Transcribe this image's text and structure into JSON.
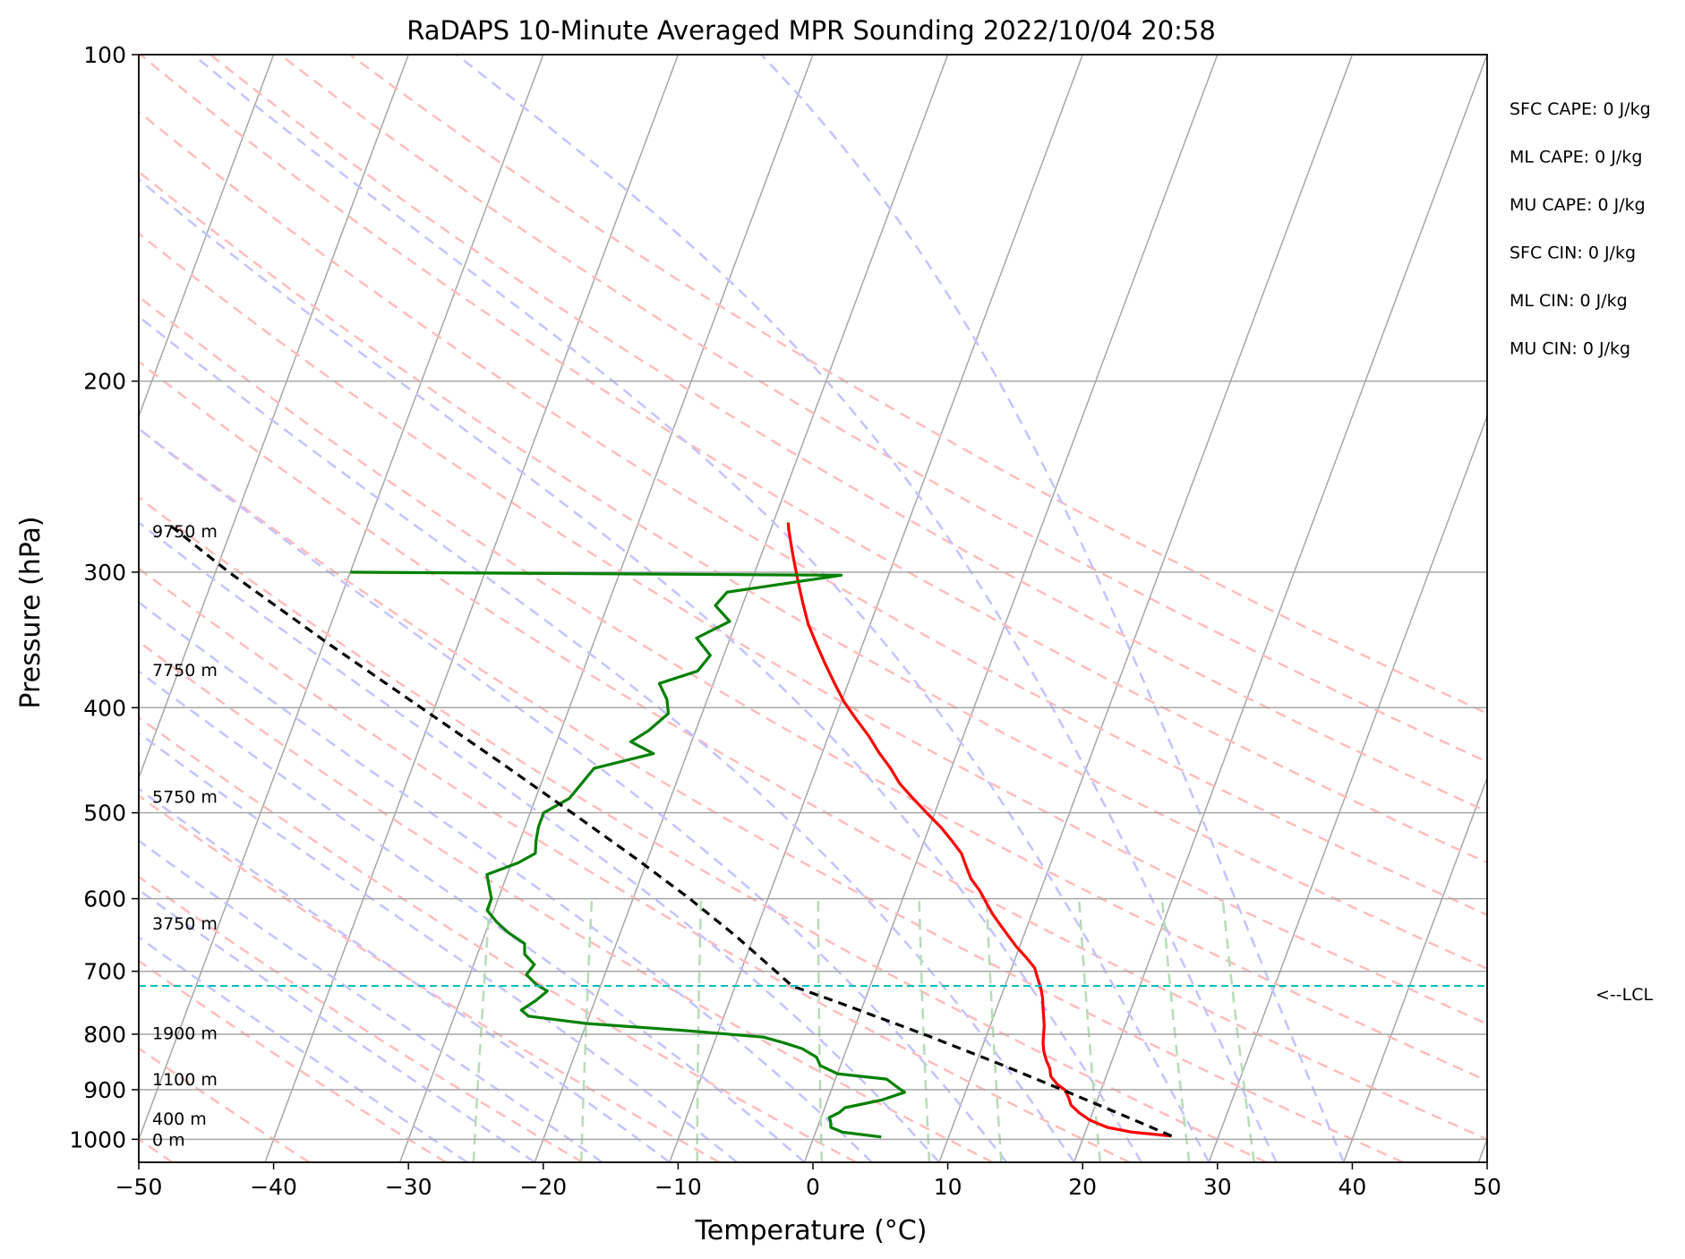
{
  "chart_data": {
    "type": "line",
    "title": "RaDAPS 10-Minute Averaged MPR Sounding 2022/10/04 20:58",
    "xlabel": "Temperature (°C)",
    "ylabel": "Pressure (hPa)",
    "xlim": [
      -50,
      50
    ],
    "ylim": [
      1050,
      100
    ],
    "y_scale": "log",
    "x_ticks": [
      -50,
      -40,
      -30,
      -20,
      -10,
      0,
      10,
      20,
      30,
      40,
      50
    ],
    "x_tick_labels": [
      "−50",
      "−40",
      "−30",
      "−20",
      "−10",
      "0",
      "10",
      "20",
      "30",
      "40",
      "50"
    ],
    "y_ticks": [
      100,
      200,
      300,
      400,
      500,
      600,
      700,
      800,
      900,
      1000
    ],
    "y_tick_labels": [
      "100",
      "200",
      "300",
      "400",
      "500",
      "600",
      "700",
      "800",
      "900",
      "1000"
    ],
    "colors": {
      "temperature": "#ff0000",
      "dewpoint": "#008000",
      "parcel": "#000000",
      "isotherm": "#a6a6a6",
      "dry_adiabat": "#ffbcbc",
      "moist_adiabat": "#c3c3ff",
      "mixing_ratio": "#b7dbb7",
      "lcl_line": "#00bfbf"
    },
    "series": [
      {
        "key": "temperature",
        "pressure": [
          993,
          985,
          975,
          960,
          945,
          930,
          915,
          900,
          890,
          875,
          860,
          845,
          830,
          815,
          800,
          785,
          770,
          755,
          740,
          725,
          710,
          695,
          680,
          665,
          650,
          635,
          620,
          605,
          590,
          575,
          560,
          545,
          530,
          515,
          500,
          485,
          470,
          455,
          440,
          425,
          410,
          395,
          380,
          365,
          350,
          335,
          320,
          305,
          290,
          275,
          270
        ],
        "temperature": [
          26.5,
          23.5,
          21.5,
          20.0,
          19.0,
          18.2,
          17.8,
          17.3,
          16.6,
          15.9,
          15.6,
          15.1,
          14.7,
          14.4,
          14.2,
          14.0,
          13.7,
          13.4,
          13.1,
          12.7,
          12.2,
          11.7,
          10.8,
          9.8,
          8.9,
          8.0,
          7.1,
          6.3,
          5.5,
          4.5,
          3.8,
          3.1,
          2.0,
          0.8,
          -0.6,
          -2.0,
          -3.4,
          -4.5,
          -5.8,
          -7.0,
          -8.4,
          -9.8,
          -11.0,
          -12.2,
          -13.4,
          -14.6,
          -15.6,
          -16.6,
          -17.6,
          -18.6,
          -18.9
        ]
      },
      {
        "key": "dewpoint",
        "pressure": [
          995,
          985,
          975,
          962,
          955,
          945,
          935,
          920,
          905,
          895,
          880,
          870,
          855,
          840,
          825,
          815,
          805,
          793,
          782,
          770,
          760,
          745,
          730,
          720,
          705,
          690,
          675,
          660,
          645,
          630,
          615,
          600,
          585,
          570,
          556,
          545,
          530,
          515,
          500,
          485,
          470,
          455,
          441,
          430,
          420,
          405,
          393,
          380,
          370,
          358,
          345,
          333,
          322,
          313,
          302,
          300
        ],
        "temperature": [
          5.0,
          2.0,
          1.0,
          0.8,
          0.6,
          1.2,
          1.5,
          4.0,
          5.5,
          4.8,
          3.8,
          0.0,
          -1.5,
          -2.0,
          -3.3,
          -4.8,
          -6.5,
          -13.0,
          -20.0,
          -24.5,
          -25.2,
          -24.4,
          -23.8,
          -24.8,
          -25.8,
          -25.5,
          -26.5,
          -26.8,
          -28.3,
          -29.5,
          -30.5,
          -30.5,
          -31.0,
          -31.5,
          -29.5,
          -28.5,
          -28.8,
          -29.0,
          -29.0,
          -27.5,
          -27.0,
          -26.5,
          -22.5,
          -24.5,
          -23.5,
          -22.5,
          -23.0,
          -24.0,
          -21.5,
          -21.0,
          -22.5,
          -20.5,
          -22.0,
          -21.5,
          -13.5,
          -50.0
        ]
      },
      {
        "key": "parcel",
        "pressure": [
          993,
          950,
          900,
          850,
          800,
          750,
          722,
          700,
          650,
          600,
          550,
          500,
          450,
          400,
          350,
          300,
          270
        ],
        "temperature": [
          26.5,
          22.3,
          17.1,
          11.5,
          5.3,
          -1.6,
          -5.8,
          -7.4,
          -11.3,
          -15.8,
          -21.0,
          -26.9,
          -33.5,
          -41.0,
          -49.5,
          -59.0,
          -65.0
        ]
      }
    ],
    "height_labels": [
      {
        "text": "0 m",
        "pressure": 1000
      },
      {
        "text": "400 m",
        "pressure": 957
      },
      {
        "text": "1100 m",
        "pressure": 880
      },
      {
        "text": "1900 m",
        "pressure": 798
      },
      {
        "text": "3750 m",
        "pressure": 632
      },
      {
        "text": "5750 m",
        "pressure": 483
      },
      {
        "text": "7750 m",
        "pressure": 369
      },
      {
        "text": "9750 m",
        "pressure": 275
      }
    ],
    "lcl": {
      "pressure": 722,
      "label": "<--LCL"
    },
    "parameters": [
      "SFC CAPE: 0 J/kg",
      "ML CAPE: 0 J/kg",
      "MU CAPE: 0 J/kg",
      "SFC CIN: 0 J/kg",
      "ML CIN: 0 J/kg",
      "MU CIN: 0 J/kg"
    ],
    "grid": true
  }
}
